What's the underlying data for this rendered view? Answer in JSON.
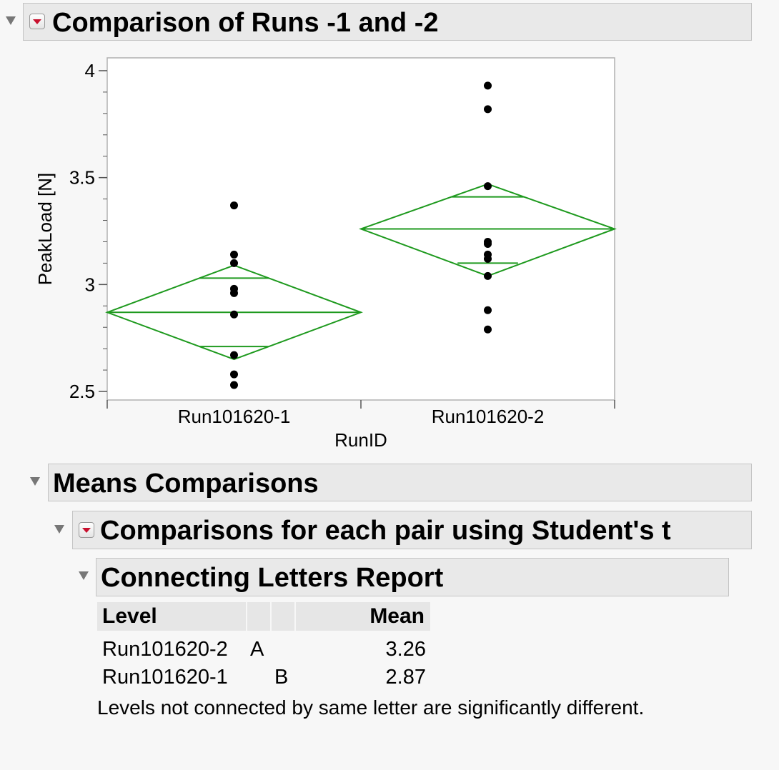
{
  "report": {
    "title": "Comparison of Runs -1 and -2"
  },
  "chart_data": {
    "type": "scatter",
    "xlabel": "RunID",
    "ylabel": "PeakLoad [N]",
    "categories": [
      "Run101620-1",
      "Run101620-2"
    ],
    "ylim": [
      2.46,
      4.06
    ],
    "yticks": [
      2.5,
      3,
      3.5,
      4
    ],
    "ytick_labels": [
      "2.5",
      "3",
      "3.5",
      "4"
    ],
    "points": [
      {
        "category": "Run101620-1",
        "values": [
          3.37,
          3.14,
          3.1,
          2.98,
          2.96,
          2.86,
          2.67,
          2.58,
          2.53
        ]
      },
      {
        "category": "Run101620-2",
        "values": [
          3.93,
          3.82,
          3.46,
          3.2,
          3.19,
          3.14,
          3.12,
          3.04,
          2.88,
          2.79
        ]
      }
    ],
    "means_diamonds": [
      {
        "category": "Run101620-1",
        "mean": 2.87,
        "upper": 3.09,
        "lower": 2.65,
        "overlap_upper": 3.03,
        "overlap_lower": 2.71
      },
      {
        "category": "Run101620-2",
        "mean": 3.26,
        "upper": 3.47,
        "lower": 3.04,
        "overlap_upper": 3.41,
        "overlap_lower": 3.1
      }
    ],
    "colors": {
      "diamond": "#1f9a1f",
      "points": "#000000"
    }
  },
  "means_comparisons": {
    "title": "Means Comparisons",
    "student_t": {
      "title": "Comparisons for each pair using Student's t",
      "connecting_letters": {
        "title": "Connecting Letters Report",
        "headers": {
          "level": "Level",
          "mean": "Mean"
        },
        "rows": [
          {
            "level": "Run101620-2",
            "letter_a": "A",
            "letter_b": "",
            "mean": "3.26"
          },
          {
            "level": "Run101620-1",
            "letter_a": "",
            "letter_b": "B",
            "mean": "2.87"
          }
        ],
        "footnote": "Levels not connected by same letter are significantly different."
      }
    }
  }
}
